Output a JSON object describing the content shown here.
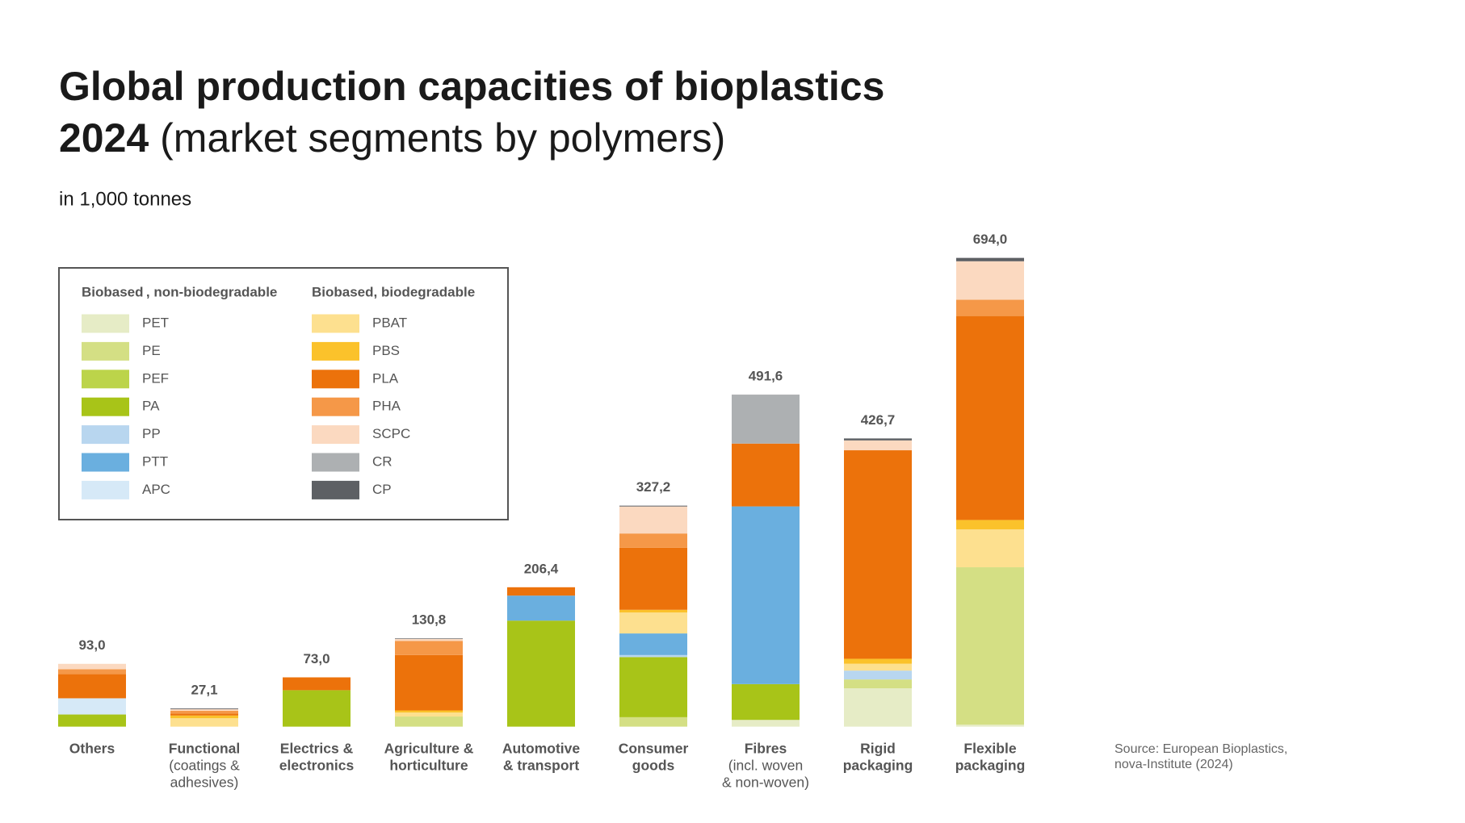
{
  "chart_data": {
    "type": "stacked_bar",
    "title": "Global production capacities of bioplastics",
    "title_year": "2024",
    "title_rest": "(market segments by polymers)",
    "subtitle": "in 1,000 tonnes",
    "legend_groups": [
      "Biobased , non-biodegradable",
      "Biobased, biodegradable"
    ],
    "categories": [
      [
        "Others"
      ],
      [
        "Functional"
      ],
      [
        "Electrics &",
        "electronics"
      ],
      [
        "Agriculture &",
        "horticulture"
      ],
      [
        "Automotive",
        "& transport"
      ],
      [
        "Consumer",
        "goods"
      ],
      [
        "Fibres"
      ],
      [
        "Rigid",
        "packaging"
      ],
      [
        "Flexible",
        "packaging"
      ]
    ],
    "category_notes": [
      null,
      [
        "(coatings &",
        "adhesives)"
      ],
      null,
      null,
      null,
      null,
      [
        "(incl. woven",
        "& non-woven)"
      ],
      null,
      null
    ],
    "totals": [
      93.0,
      27.1,
      73.0,
      130.8,
      206.4,
      327.2,
      491.6,
      426.7,
      694.0
    ],
    "total_labels": [
      "93,0",
      "27,1",
      "73,0",
      "130,8",
      "206,4",
      "327,2",
      "491,6",
      "426,7",
      "694,0"
    ],
    "ylim": [
      0,
      700
    ],
    "series": [
      {
        "name": "PET",
        "group": 0,
        "color": "#e6ecc6",
        "values": [
          0,
          0,
          0,
          0,
          0,
          0,
          10,
          56.8,
          3
        ]
      },
      {
        "name": "PE",
        "group": 0,
        "color": "#d4df84",
        "values": [
          0,
          0,
          0,
          15,
          0,
          14,
          0,
          13.1,
          233
        ]
      },
      {
        "name": "PEF",
        "group": 0,
        "color": "#bcd44a",
        "values": [
          0,
          0,
          0,
          0,
          0,
          0,
          0,
          0,
          0
        ]
      },
      {
        "name": "PA",
        "group": 0,
        "color": "#a8c418",
        "values": [
          18,
          0,
          54,
          0,
          157,
          89,
          53,
          0,
          0
        ]
      },
      {
        "name": "PP",
        "group": 0,
        "color": "#b8d6ef",
        "values": [
          0,
          0,
          0,
          0,
          0,
          3,
          0,
          13.1,
          0
        ]
      },
      {
        "name": "PTT",
        "group": 0,
        "color": "#6aafdf",
        "values": [
          0,
          0,
          0,
          0,
          37,
          32,
          263.1,
          0,
          0
        ]
      },
      {
        "name": "APC",
        "group": 0,
        "color": "#d6e9f7",
        "values": [
          24,
          0,
          0,
          0,
          0,
          0,
          0,
          0,
          0
        ]
      },
      {
        "name": "PBAT",
        "group": 1,
        "color": "#fde08f",
        "values": [
          0,
          12.5,
          0,
          6,
          0,
          31,
          0,
          10.2,
          56
        ]
      },
      {
        "name": "PBS",
        "group": 1,
        "color": "#fbc22b",
        "values": [
          0,
          4,
          0,
          3,
          0,
          4,
          0,
          7.3,
          14
        ]
      },
      {
        "name": "PLA",
        "group": 1,
        "color": "#ec720b",
        "values": [
          36,
          3,
          19,
          82,
          12.4,
          92,
          93,
          308.7,
          302
        ]
      },
      {
        "name": "PHA",
        "group": 1,
        "color": "#f59848",
        "values": [
          7,
          4,
          0,
          21,
          0,
          21,
          0,
          0,
          24
        ]
      },
      {
        "name": "SCPC",
        "group": 1,
        "color": "#fbd9c0",
        "values": [
          8,
          2.5,
          0,
          3,
          0,
          40,
          0,
          14.6,
          57
        ]
      },
      {
        "name": "CR",
        "group": 1,
        "color": "#adb0b2",
        "values": [
          0,
          0,
          0,
          0,
          0,
          0,
          72.5,
          0,
          0
        ]
      },
      {
        "name": "CP",
        "group": 1,
        "color": "#5d6064",
        "values": [
          0,
          1.1,
          0,
          0.8,
          0,
          1.2,
          0,
          2.9,
          5
        ]
      }
    ],
    "source": [
      "Source: European Bioplastics,",
      "nova-Institute (2024)"
    ]
  }
}
